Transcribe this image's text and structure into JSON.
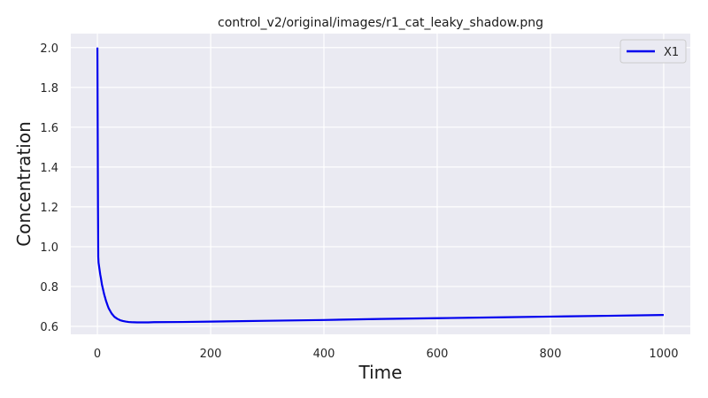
{
  "chart_data": {
    "type": "line",
    "title": "control_v2/original/images/r1_cat_leaky_shadow.png",
    "xlabel": "Time",
    "ylabel": "Concentration",
    "xlim": [
      -47,
      1047
    ],
    "ylim": [
      0.56,
      2.07
    ],
    "xticks": [
      0,
      200,
      400,
      600,
      800,
      1000
    ],
    "yticks": [
      0.6,
      0.8,
      1.0,
      1.2,
      1.4,
      1.6,
      1.8,
      2.0
    ],
    "xtick_labels": [
      "0",
      "200",
      "400",
      "600",
      "800",
      "1000"
    ],
    "ytick_labels": [
      "0.6",
      "0.8",
      "1.0",
      "1.2",
      "1.4",
      "1.6",
      "1.8",
      "2.0"
    ],
    "grid": true,
    "legend_position": "top-right",
    "series": [
      {
        "name": "X1",
        "color": "#0000ee",
        "x": [
          0,
          0.5,
          1,
          1.5,
          2,
          3,
          4,
          5,
          6,
          8,
          10,
          12,
          15,
          18,
          20,
          25,
          30,
          35,
          40,
          45,
          50,
          55,
          60,
          70,
          80,
          90,
          100,
          150,
          200,
          300,
          400,
          500,
          600,
          700,
          800,
          900,
          1000
        ],
        "y": [
          2.0,
          1.6,
          1.2,
          0.95,
          0.92,
          0.9,
          0.88,
          0.86,
          0.845,
          0.81,
          0.785,
          0.76,
          0.73,
          0.705,
          0.69,
          0.665,
          0.648,
          0.638,
          0.631,
          0.627,
          0.624,
          0.622,
          0.621,
          0.62,
          0.62,
          0.62,
          0.621,
          0.622,
          0.624,
          0.628,
          0.632,
          0.637,
          0.641,
          0.645,
          0.649,
          0.653,
          0.657
        ]
      }
    ]
  }
}
